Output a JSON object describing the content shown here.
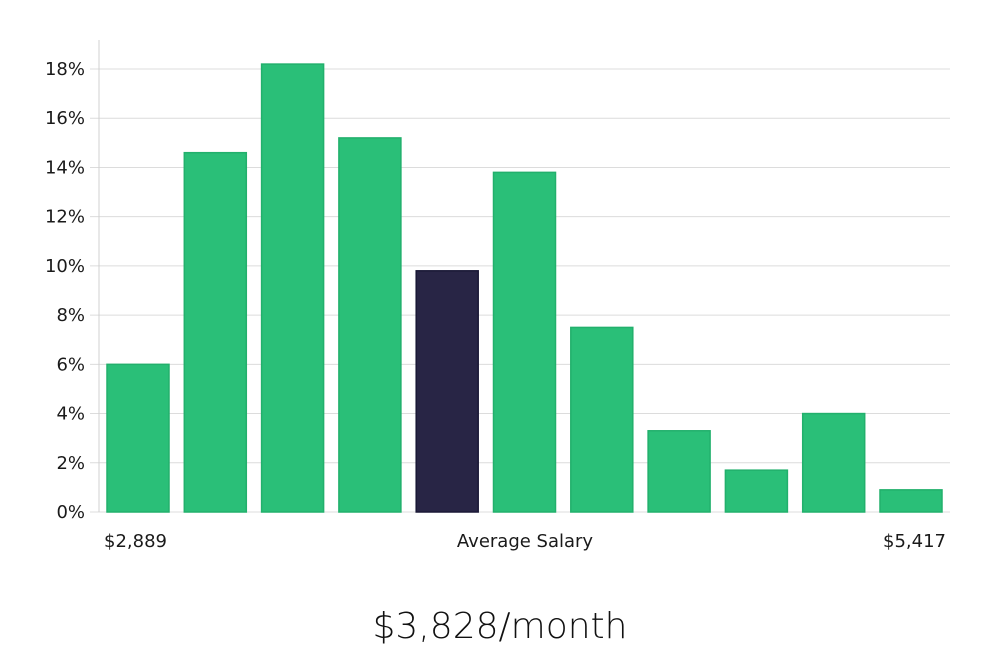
{
  "chart_data": {
    "type": "bar",
    "categories": [
      "",
      "",
      "",
      "",
      "",
      "",
      "",
      "",
      "",
      "",
      ""
    ],
    "values": [
      6.0,
      14.6,
      18.2,
      15.2,
      9.8,
      13.8,
      7.5,
      3.3,
      1.7,
      4.0,
      0.9
    ],
    "highlight_index": 4,
    "ylim": [
      0,
      19
    ],
    "yticks": [
      0,
      2,
      4,
      6,
      8,
      10,
      12,
      14,
      16,
      18
    ],
    "ytick_labels": [
      "0%",
      "2%",
      "4%",
      "6%",
      "8%",
      "10%",
      "12%",
      "14%",
      "16%",
      "18%"
    ],
    "x_min_label": "$2,889",
    "x_center_label": "Average Salary",
    "x_max_label": "$5,417",
    "grid": true,
    "colors": {
      "bar": "#2abf78",
      "bar_edge": "#22b06c",
      "highlight": "#282545",
      "highlight_edge": "#1a1836"
    }
  },
  "headline": "$3,828/month"
}
